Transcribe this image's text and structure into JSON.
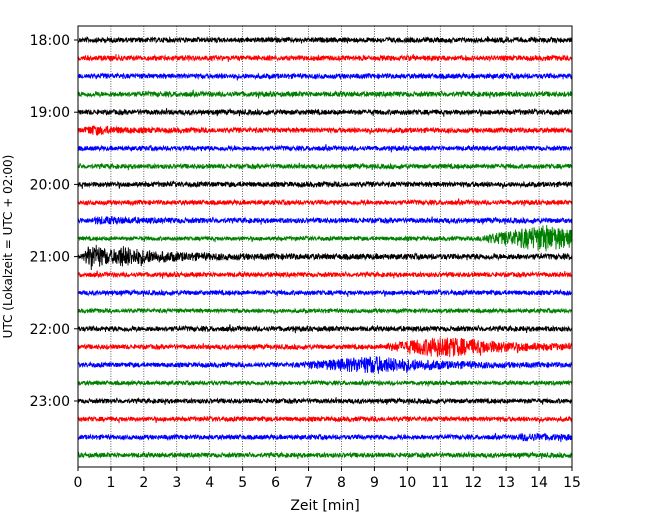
{
  "chart_data": {
    "type": "line",
    "title": "",
    "xlabel": "Zeit  [min]",
    "ylabel": "UTC (Lokalzeit = UTC + 02:00)",
    "xlim": [
      0,
      15
    ],
    "x_ticks": [
      0,
      1,
      2,
      3,
      4,
      5,
      6,
      7,
      8,
      9,
      10,
      11,
      12,
      13,
      14,
      15
    ],
    "y_ticks": [
      "18:00",
      "19:00",
      "20:00",
      "21:00",
      "22:00",
      "23:00"
    ],
    "x_grid": "dotted vertical lines at each minute",
    "color_cycle": [
      "#000000",
      "#ff0000",
      "#0000ff",
      "#008000"
    ],
    "series": [
      {
        "start": "18:00",
        "color": "#000000",
        "noise": 2.5,
        "events": []
      },
      {
        "start": "18:15",
        "color": "#ff0000",
        "noise": 2.5,
        "events": []
      },
      {
        "start": "18:30",
        "color": "#0000ff",
        "noise": 2.5,
        "events": []
      },
      {
        "start": "18:45",
        "color": "#008000",
        "noise": 2.5,
        "events": []
      },
      {
        "start": "19:00",
        "color": "#000000",
        "noise": 2.5,
        "events": []
      },
      {
        "start": "19:15",
        "color": "#ff0000",
        "noise": 2.5,
        "events": [
          {
            "t": 0.4,
            "amp": 3,
            "dur": 0.8
          }
        ]
      },
      {
        "start": "19:30",
        "color": "#0000ff",
        "noise": 2.3,
        "events": []
      },
      {
        "start": "19:45",
        "color": "#008000",
        "noise": 2.3,
        "events": []
      },
      {
        "start": "20:00",
        "color": "#000000",
        "noise": 2.5,
        "events": []
      },
      {
        "start": "20:15",
        "color": "#ff0000",
        "noise": 2.3,
        "events": []
      },
      {
        "start": "20:30",
        "color": "#0000ff",
        "noise": 2.5,
        "events": [
          {
            "t": 0.6,
            "amp": 2,
            "dur": 1.2
          }
        ]
      },
      {
        "start": "20:45",
        "color": "#008000",
        "noise": 2.0,
        "events": [
          {
            "t": 14.2,
            "amp": 12,
            "dur": 1.5,
            "rise": 2.2
          }
        ]
      },
      {
        "start": "21:00",
        "color": "#000000",
        "noise": 2.8,
        "events": [
          {
            "t": 0.4,
            "amp": 12,
            "dur": 0.6
          },
          {
            "t": 1.3,
            "amp": 6,
            "dur": 1.5
          }
        ]
      },
      {
        "start": "21:15",
        "color": "#ff0000",
        "noise": 2.3,
        "events": []
      },
      {
        "start": "21:30",
        "color": "#0000ff",
        "noise": 2.3,
        "events": []
      },
      {
        "start": "21:45",
        "color": "#008000",
        "noise": 2.0,
        "events": []
      },
      {
        "start": "22:00",
        "color": "#000000",
        "noise": 2.5,
        "events": []
      },
      {
        "start": "22:15",
        "color": "#ff0000",
        "noise": 2.3,
        "events": [
          {
            "t": 11.1,
            "amp": 9,
            "dur": 1.8,
            "rise": 2.0
          }
        ]
      },
      {
        "start": "22:30",
        "color": "#0000ff",
        "noise": 2.3,
        "events": [
          {
            "t": 9.0,
            "amp": 7,
            "dur": 1.8,
            "rise": 2.5
          }
        ]
      },
      {
        "start": "22:45",
        "color": "#008000",
        "noise": 2.0,
        "events": []
      },
      {
        "start": "23:00",
        "color": "#000000",
        "noise": 2.3,
        "events": []
      },
      {
        "start": "23:15",
        "color": "#ff0000",
        "noise": 2.3,
        "events": []
      },
      {
        "start": "23:30",
        "color": "#0000ff",
        "noise": 2.3,
        "events": [
          {
            "t": 13.5,
            "amp": 2,
            "dur": 1.5
          }
        ]
      },
      {
        "start": "23:45",
        "color": "#008000",
        "noise": 2.3,
        "events": []
      }
    ]
  }
}
